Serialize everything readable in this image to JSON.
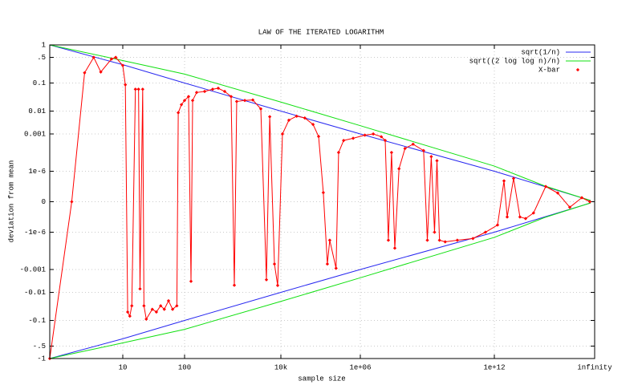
{
  "chart_data": {
    "type": "line",
    "title": "LAW OF THE ITERATED LOGARITHM",
    "xlabel": "sample size",
    "ylabel": "deviation from mean",
    "xscale": "log",
    "grid": true,
    "legend": "top-right",
    "xlim": [
      1,
      null
    ],
    "xticks": [
      10,
      100,
      {
        "value": 10000,
        "label": "10k"
      },
      {
        "value": 1000000,
        "label": "1e+06"
      },
      {
        "value": 1000000000000,
        "label": "1e+12"
      },
      {
        "value": null,
        "label": "infinity"
      }
    ],
    "ylim": [
      -1,
      1
    ],
    "yticks": [
      1,
      {
        "value": 0.5,
        "label": ".5"
      },
      0.1,
      0.01,
      0.001,
      {
        "value": 1e-06,
        "label": "1e-6"
      },
      0,
      {
        "value": -1e-06,
        "label": "-1e-6"
      },
      -0.001,
      -0.01,
      -0.1,
      {
        "value": -0.5,
        "label": "-.5"
      },
      -1
    ],
    "series": [
      {
        "name": "sqrt(1/n)",
        "color": "#2828f0",
        "style": "lines",
        "x": [
          1,
          10,
          100,
          10000,
          1000000,
          1000000000000,
          1e+24,
          1e+100,
          1e+300
        ],
        "values": [
          1,
          0.316,
          0.1,
          0.01,
          0.001,
          1e-06,
          1e-12,
          1e-50,
          1e-150
        ],
        "values_lower": [
          -1,
          -0.316,
          -0.1,
          -0.01,
          -0.001,
          -1e-06,
          -1e-12,
          -1e-50,
          -1e-150
        ]
      },
      {
        "name": "sqrt((2 log log n)/n)",
        "color": "#10e010",
        "style": "lines",
        "x": [
          1,
          10,
          100,
          10000,
          1000000,
          1000000000000,
          1e+24,
          1e+100,
          1e+300
        ],
        "values": [
          1,
          0.41,
          0.175,
          0.021,
          0.0023,
          2.6e-06,
          2.8e-12,
          3.3e-50,
          3.6e-150
        ],
        "values_lower": [
          -1,
          -0.41,
          -0.175,
          -0.021,
          -0.0023,
          -2.6e-06,
          -2.8e-12,
          -3.3e-50,
          -3.6e-150
        ]
      },
      {
        "name": "X-bar",
        "color": "#ff0000",
        "style": "linespoints",
        "x": [
          1,
          2,
          3,
          4,
          5,
          7,
          8,
          10,
          11,
          12,
          13,
          14,
          16,
          18,
          19,
          21,
          22,
          24,
          30,
          35,
          41,
          47,
          55,
          64,
          75,
          79,
          89,
          100,
          121,
          136,
          147,
          178,
          261,
          383,
          500,
          681,
          926,
          1080,
          1210,
          1780,
          2610,
          3830,
          5010,
          5870,
          7360,
          8580,
          10960,
          15900,
          25000,
          40000,
          64600,
          89100,
          117000,
          148000,
          170000,
          245000,
          284000,
          380000,
          660000,
          1600000,
          3800000,
          8700000,
          13000000,
          18000000,
          25000000,
          35000000,
          54000000,
          100000000,
          230000000,
          680000000,
          1000000000,
          1500000000,
          2100000000,
          2700000000,
          3500000000,
          6300000000,
          22000000000,
          110000000000,
          400000000000,
          2500000000000.0,
          19000000000000.0,
          58000000000000.0,
          700000000000000.0,
          1.3e+16,
          2.7e+17,
          5e+19,
          4e+24,
          4e+32,
          2.5e+48,
          6e+93,
          1e+250
        ],
        "values": [
          -1,
          0,
          0.19,
          0.5,
          0.2,
          0.45,
          0.5,
          0.3,
          0.087,
          -0.05,
          -0.07,
          -0.03,
          0.06,
          0.06,
          -0.007,
          0.06,
          -0.03,
          -0.09,
          -0.04,
          -0.05,
          -0.03,
          -0.04,
          -0.02,
          -0.04,
          -0.03,
          0.0085,
          0.017,
          0.024,
          0.033,
          -0.0033,
          0.024,
          0.046,
          0.05,
          0.06,
          0.065,
          0.05,
          0.033,
          -0.0049,
          0.022,
          0.024,
          0.025,
          0.012,
          -0.0028,
          0.0057,
          -0.00036,
          -0.005,
          0.001,
          0.004,
          0.006,
          0.005,
          0.0026,
          0.00063,
          1e-20,
          -0.00036,
          -4.4e-06,
          -0.0008,
          3.2e-05,
          0.0003,
          0.00045,
          0.0008,
          0.001,
          0.0006,
          0.0003,
          -4.4e-06,
          3.2e-05,
          -1.9e-05,
          1.6e-06,
          6.8e-05,
          0.00015,
          4.6e-05,
          -4.4e-06,
          1.5e-05,
          -1e-06,
          7e-06,
          -4.4e-06,
          -5.9e-06,
          -4.4e-06,
          -3.2e-06,
          -1e-06,
          -1.4e-08,
          1.7e-09,
          -1e-12,
          1.4e-08,
          -1e-12,
          -1.4e-11,
          -5e-17,
          1e-12,
          1e-21,
          -1e-33,
          1e-46,
          0
        ]
      }
    ]
  }
}
